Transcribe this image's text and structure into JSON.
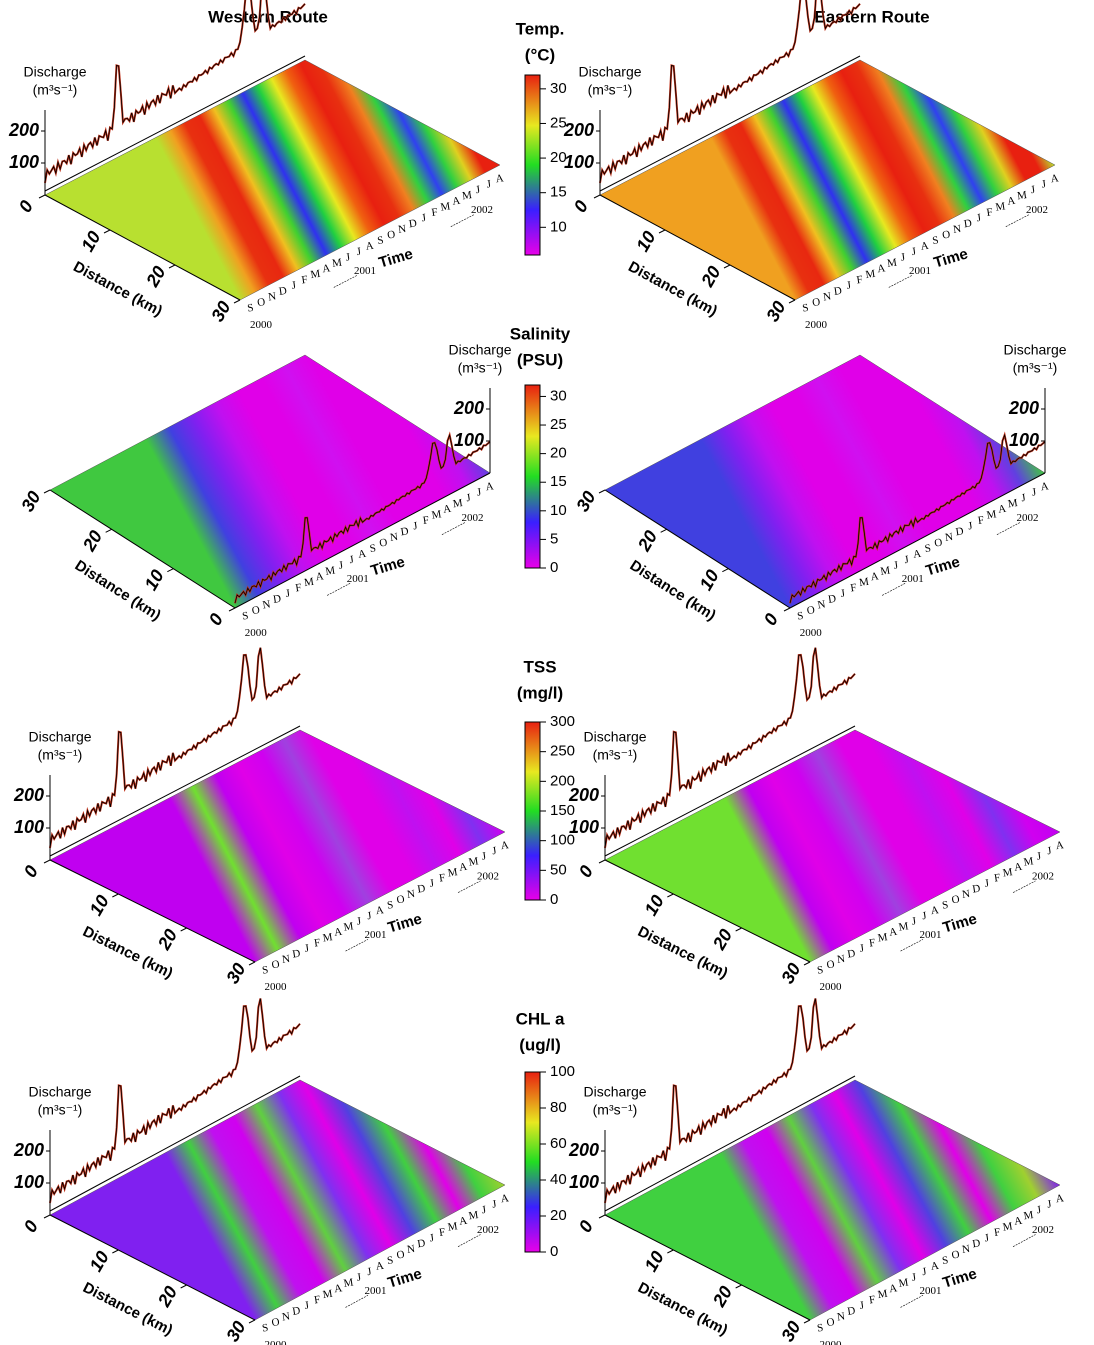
{
  "column_titles": [
    "Western Route",
    "Eastern Route"
  ],
  "axes": {
    "discharge_label": "Discharge",
    "discharge_unit": "(m³s⁻¹)",
    "discharge_ticks": [
      100,
      200
    ],
    "distance_ticks": [
      0,
      10,
      20,
      30
    ],
    "distance_label": "Distance (km)",
    "time_label": "Time",
    "months": [
      "S",
      "O",
      "N",
      "D",
      "J",
      "F",
      "M",
      "A",
      "M",
      "J",
      "J",
      "A",
      "S",
      "O",
      "N",
      "D",
      "J",
      "F",
      "M",
      "A",
      "M",
      "J",
      "J",
      "A"
    ],
    "years": [
      "2000",
      "2001",
      "2002"
    ]
  },
  "rows": [
    {
      "title": [
        "Temp.",
        "(°C)"
      ],
      "lim": [
        6,
        32
      ],
      "ticks": [
        10,
        15,
        20,
        25,
        30
      ]
    },
    {
      "title": [
        "Salinity",
        "(PSU)"
      ],
      "lim": [
        0,
        32
      ],
      "ticks": [
        0,
        5,
        10,
        15,
        20,
        25,
        30
      ]
    },
    {
      "title": [
        "TSS",
        "(mg/l)"
      ],
      "lim": [
        0,
        300
      ],
      "ticks": [
        0,
        50,
        100,
        150,
        200,
        250,
        300
      ]
    },
    {
      "title": [
        "CHL a",
        "(ug/l)"
      ],
      "lim": [
        0,
        100
      ],
      "ticks": [
        0,
        20,
        40,
        60,
        80,
        100
      ]
    }
  ]
}
